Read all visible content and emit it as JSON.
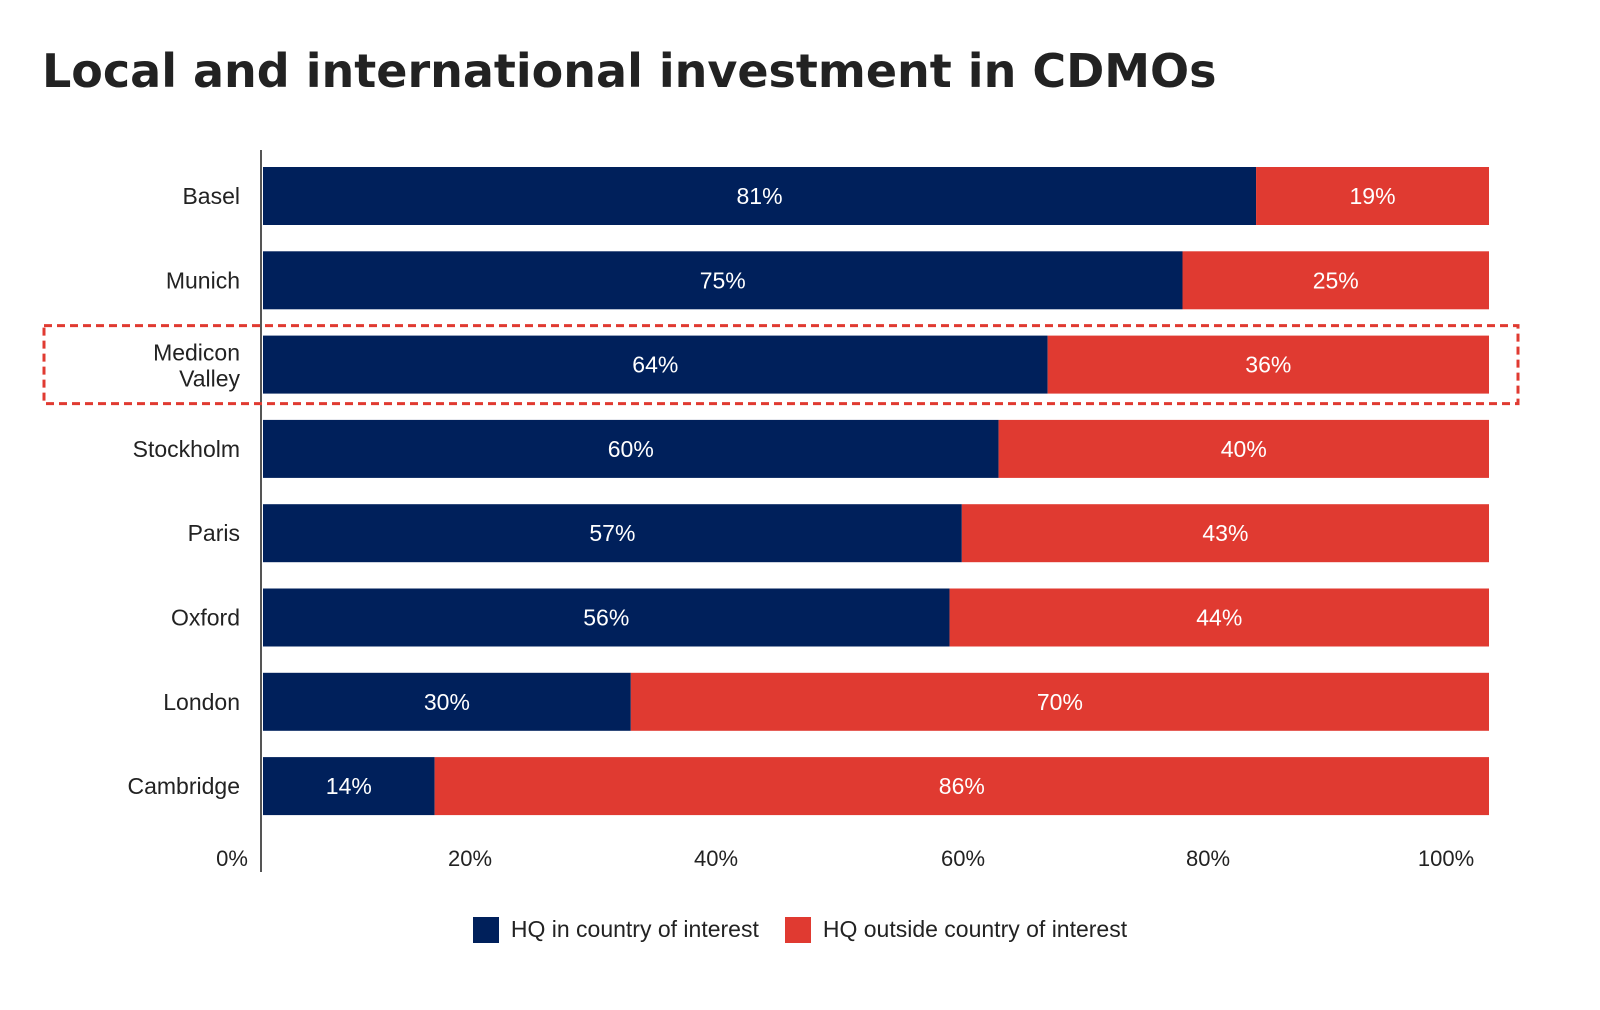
{
  "title": "Local and international investment in CDMOs",
  "colors": {
    "local": "#00205b",
    "outside": "#e03a31",
    "highlight": "#e03a31",
    "axis": "#555555"
  },
  "chart_data": {
    "type": "bar",
    "orientation": "horizontal",
    "stacked": true,
    "title": "Local and international investment in CDMOs",
    "categories": [
      "Basel",
      "Munich",
      "Medicon Valley",
      "Stockholm",
      "Paris",
      "Oxford",
      "London",
      "Cambridge"
    ],
    "series": [
      {
        "name": "HQ in country of interest",
        "values": [
          81,
          75,
          64,
          60,
          57,
          56,
          30,
          14
        ]
      },
      {
        "name": "HQ outside country of interest",
        "values": [
          19,
          25,
          36,
          40,
          43,
          44,
          70,
          86
        ]
      }
    ],
    "data_labels": {
      "local": [
        "81%",
        "75%",
        "64%",
        "60%",
        "57%",
        "56%",
        "30%",
        "14%"
      ],
      "outside": [
        "19%",
        "25%",
        "36%",
        "40%",
        "43%",
        "44%",
        "70%",
        "86%"
      ]
    },
    "xticks": [
      "0%",
      "20%",
      "40%",
      "60%",
      "80%",
      "100%"
    ],
    "xlim": [
      0,
      100
    ],
    "highlighted_category": "Medicon Valley",
    "legend_position": "bottom",
    "grid": false
  },
  "legend": [
    {
      "label": "HQ in country of interest",
      "color": "#00205b"
    },
    {
      "label": "HQ outside country of interest",
      "color": "#e03a31"
    }
  ]
}
